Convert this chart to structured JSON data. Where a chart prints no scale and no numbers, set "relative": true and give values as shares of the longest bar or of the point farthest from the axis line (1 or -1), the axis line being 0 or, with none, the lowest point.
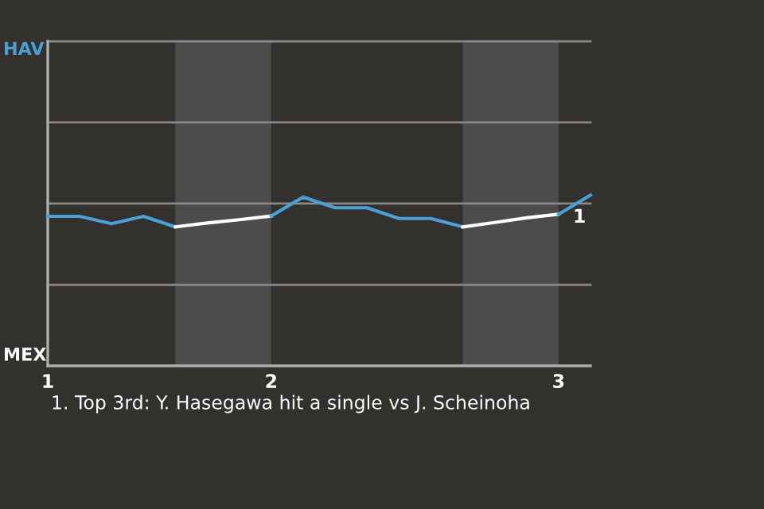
{
  "chart_data": {
    "type": "line",
    "relative": true,
    "categories": [
      "1",
      null,
      null,
      null,
      null,
      null,
      null,
      "2",
      null,
      null,
      null,
      null,
      null,
      null,
      null,
      null,
      "3",
      null
    ],
    "series": [
      {
        "color": "#4a9fd4",
        "values": [
          0.876,
          0.876,
          0.833,
          0.876,
          0.814,
          null,
          null,
          null,
          null,
          null,
          null,
          null,
          null,
          null,
          null,
          null,
          null,
          null
        ]
      },
      {
        "color": "#ffffff",
        "values": [
          null,
          null,
          null,
          null,
          0.814,
          0.837,
          0.856,
          0.878,
          null,
          null,
          null,
          null,
          null,
          null,
          null,
          null,
          null,
          null
        ]
      },
      {
        "color": "#4a9fd4",
        "values": [
          null,
          null,
          null,
          null,
          null,
          null,
          null,
          0.878,
          0.989,
          0.926,
          0.926,
          0.863,
          0.863,
          0.814,
          null,
          null,
          null,
          null
        ]
      },
      {
        "color": "#ffffff",
        "values": [
          null,
          null,
          null,
          null,
          null,
          null,
          null,
          null,
          null,
          null,
          null,
          null,
          null,
          0.814,
          0.84,
          0.867,
          0.888,
          null
        ]
      },
      {
        "color": "#4a9fd4",
        "values": [
          null,
          null,
          null,
          null,
          null,
          null,
          null,
          null,
          null,
          null,
          null,
          null,
          null,
          null,
          null,
          null,
          0.888,
          1
        ]
      }
    ],
    "ref_lines": [
      {
        "axis": "y",
        "value": 0.475,
        "color": "#8a8886"
      },
      {
        "axis": "y",
        "value": 0.951,
        "color": "#8a8886"
      },
      {
        "axis": "y",
        "value": 1.426,
        "color": "#8a8886"
      },
      {
        "axis": "y",
        "value": 1.901,
        "color": "#8a8886"
      }
    ],
    "marker": "none",
    "line_style": "solid",
    "annotations": [
      "HAV",
      "MEX",
      {
        "text": "1",
        "y": 1
      },
      "1. Top 3rd: Y. Hasegawa hit a single vs J. Scheinoha"
    ]
  }
}
